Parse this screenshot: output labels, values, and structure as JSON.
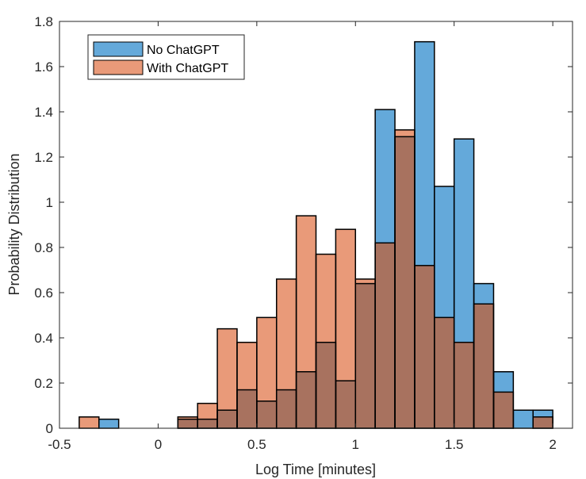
{
  "chart_data": {
    "type": "histogram",
    "xlabel": "Log Time [minutes]",
    "ylabel": "Probability Distribution",
    "xlim": [
      -0.5,
      2.1
    ],
    "ylim": [
      0,
      1.8
    ],
    "xticks": [
      -0.5,
      0,
      0.5,
      1,
      1.5,
      2
    ],
    "xtick_labels": [
      "-0.5",
      "0",
      "0.5",
      "1",
      "1.5",
      "2"
    ],
    "yticks": [
      0,
      0.2,
      0.4,
      0.6,
      0.8,
      1,
      1.2,
      1.4,
      1.6,
      1.8
    ],
    "ytick_labels": [
      "0",
      "0.2",
      "0.4",
      "0.6",
      "0.8",
      "1",
      "1.2",
      "1.4",
      "1.6",
      "1.8"
    ],
    "bin_edges": [
      -0.4,
      -0.3,
      -0.2,
      -0.1,
      0.0,
      0.1,
      0.2,
      0.3,
      0.4,
      0.5,
      0.6,
      0.7,
      0.8,
      0.9,
      1.0,
      1.1,
      1.2,
      1.3,
      1.4,
      1.5,
      1.6,
      1.7,
      1.8,
      1.9,
      2.0
    ],
    "series": [
      {
        "name": "No ChatGPT",
        "color": "#0072BD",
        "fill": "#64A9DA",
        "values": [
          0,
          0.04,
          0,
          0,
          0,
          0.04,
          0.04,
          0.08,
          0.17,
          0.12,
          0.17,
          0.25,
          0.38,
          0.21,
          0.64,
          1.41,
          1.29,
          1.71,
          1.07,
          1.28,
          0.64,
          0.25,
          0.08,
          0.08
        ]
      },
      {
        "name": "With ChatGPT",
        "color": "#D95319",
        "fill": "#E99A79",
        "values": [
          0.05,
          0,
          0,
          0,
          0,
          0.05,
          0.11,
          0.44,
          0.38,
          0.49,
          0.66,
          0.94,
          0.77,
          0.88,
          0.66,
          0.82,
          1.32,
          0.72,
          0.49,
          0.38,
          0.55,
          0.16,
          0,
          0.05
        ]
      }
    ],
    "legend_position": "top-left",
    "grid": false
  }
}
